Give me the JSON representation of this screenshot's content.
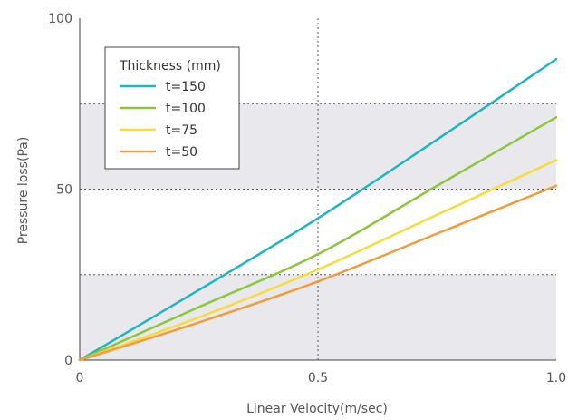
{
  "chart_data": {
    "type": "line",
    "title": "",
    "xlabel": "Linear Velocity(m/sec)",
    "ylabel": "Pressure loss(Pa)",
    "xlim": [
      0,
      1.0
    ],
    "ylim": [
      0,
      100
    ],
    "xticks": [
      0,
      0.5,
      1.0
    ],
    "xtick_labels": [
      "0",
      "0.5",
      "1.0"
    ],
    "yticks": [
      0,
      50,
      100
    ],
    "ytick_labels": [
      "0",
      "50",
      "100"
    ],
    "shaded_bands": [
      [
        0,
        25
      ],
      [
        50,
        75
      ]
    ],
    "dotted_gridlines_y": [
      25,
      50,
      75
    ],
    "dotted_gridlines_x": [
      0.5
    ],
    "legend": {
      "title": "Thickness (mm)",
      "placement": "top-left"
    },
    "series": [
      {
        "name": "t=150",
        "color": "#1fb5bf",
        "x": [
          0,
          0.25,
          0.5,
          0.75,
          1.0
        ],
        "y": [
          0,
          20.5,
          41.5,
          64.5,
          88
        ]
      },
      {
        "name": "t=100",
        "color": "#8cc63f",
        "x": [
          0,
          0.25,
          0.5,
          0.75,
          1.0
        ],
        "y": [
          0,
          15.5,
          31,
          51,
          71
        ]
      },
      {
        "name": "t=75",
        "color": "#f5dc3c",
        "x": [
          0,
          0.25,
          0.5,
          0.75,
          1.0
        ],
        "y": [
          0,
          12.5,
          26.5,
          42.5,
          58.5
        ]
      },
      {
        "name": "t=50",
        "color": "#f29b3a",
        "x": [
          0,
          0.25,
          0.5,
          0.75,
          1.0
        ],
        "y": [
          0,
          11,
          23,
          37,
          51
        ]
      }
    ]
  }
}
